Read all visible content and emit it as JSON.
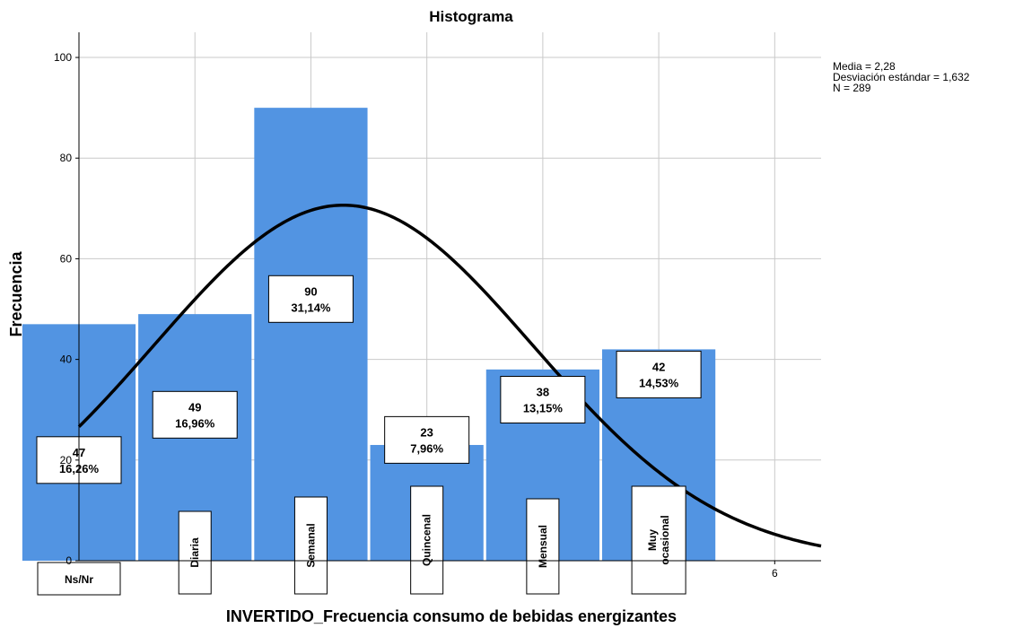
{
  "chart_data": {
    "type": "bar",
    "title": "Histograma",
    "xlabel": "INVERTIDO_Frecuencia consumo de bebidas energizantes",
    "ylabel": "Frecuencia",
    "ylim": [
      0,
      105
    ],
    "xlim": [
      0,
      6.4
    ],
    "y_ticks": [
      "0",
      "20",
      "40",
      "60",
      "80",
      "100"
    ],
    "x_ticks": [
      "6"
    ],
    "grid": true,
    "categories": [
      "Ns/Nr",
      "Diaria",
      "Semanal",
      "Quincenal",
      "Mensual",
      "Muy ocasional"
    ],
    "values": [
      47,
      49,
      90,
      23,
      38,
      42
    ],
    "data_labels": [
      {
        "count": "47",
        "percent": "16,26%"
      },
      {
        "count": "49",
        "percent": "16,96%"
      },
      {
        "count": "90",
        "percent": "31,14%"
      },
      {
        "count": "23",
        "percent": "7,96%"
      },
      {
        "count": "38",
        "percent": "13,15%"
      },
      {
        "count": "42",
        "percent": "14,53%"
      }
    ],
    "normal_curve": {
      "mean": 2.28,
      "sd": 1.632,
      "n": 289
    },
    "stats_text": [
      "Media = 2,28",
      "Desviación estándar = 1,632",
      "N = 289"
    ],
    "bar_color": "#5294e2",
    "curve_color": "#000000"
  }
}
